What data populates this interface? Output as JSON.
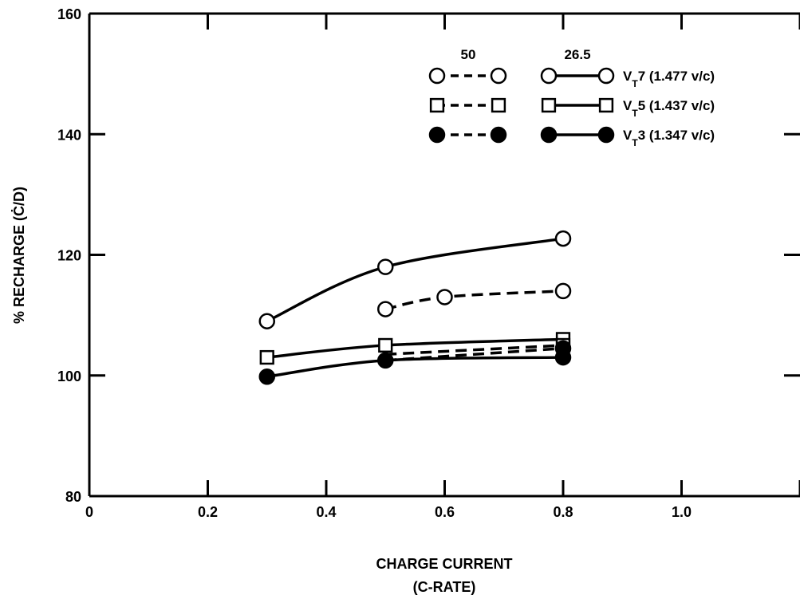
{
  "chart_data": {
    "type": "line",
    "title": "",
    "xlabel_line1": "CHARGE CURRENT",
    "xlabel_line2": "(C-RATE)",
    "ylabel": "% RECHARGE (Ċ/D)",
    "xlim": [
      0,
      1.2
    ],
    "ylim": [
      80,
      160
    ],
    "x_ticks": [
      0,
      0.2,
      0.4,
      0.6,
      0.8,
      1.0
    ],
    "x_tick_labels": [
      "0",
      "0.2",
      "0.4",
      "0.6",
      "0.8",
      "1.0"
    ],
    "y_ticks": [
      80,
      100,
      120,
      140,
      160
    ],
    "y_tick_labels": [
      "80",
      "100",
      "120",
      "140",
      "160"
    ],
    "grid": false,
    "legend_position": "top-right",
    "legend": {
      "column_headers": [
        "50",
        "26.5"
      ],
      "rows": [
        {
          "label_prefix": "V",
          "label_sub": "T",
          "label_rest": "7 (1.477 v/c)",
          "marker": "circle-open"
        },
        {
          "label_prefix": "V",
          "label_sub": "T",
          "label_rest": "5 (1.437 v/c)",
          "marker": "square-open"
        },
        {
          "label_prefix": "V",
          "label_sub": "T",
          "label_rest": "3 (1.347 v/c)",
          "marker": "circle-filled"
        }
      ]
    },
    "series": [
      {
        "marker": "circle-open",
        "dash": "solid",
        "x": [
          0.3,
          0.5,
          0.8
        ],
        "y": [
          109,
          118,
          122.7
        ]
      },
      {
        "marker": "circle-open",
        "dash": "dashed",
        "x": [
          0.5,
          0.6,
          0.8
        ],
        "y": [
          111,
          113,
          114
        ]
      },
      {
        "marker": "square-open",
        "dash": "solid",
        "x": [
          0.3,
          0.5,
          0.8
        ],
        "y": [
          103,
          105,
          106
        ]
      },
      {
        "marker": "square-open",
        "dash": "dashed",
        "x": [
          0.5,
          0.8
        ],
        "y": [
          103.5,
          105
        ],
        "marker_at": [
          false,
          true
        ]
      },
      {
        "marker": "circle-filled",
        "dash": "solid",
        "x": [
          0.3,
          0.5,
          0.8
        ],
        "y": [
          99.8,
          102.5,
          103
        ]
      },
      {
        "marker": "circle-filled",
        "dash": "dashed",
        "x": [
          0.5,
          0.8
        ],
        "y": [
          102.5,
          104.5
        ],
        "marker_at": [
          false,
          true
        ]
      }
    ]
  }
}
